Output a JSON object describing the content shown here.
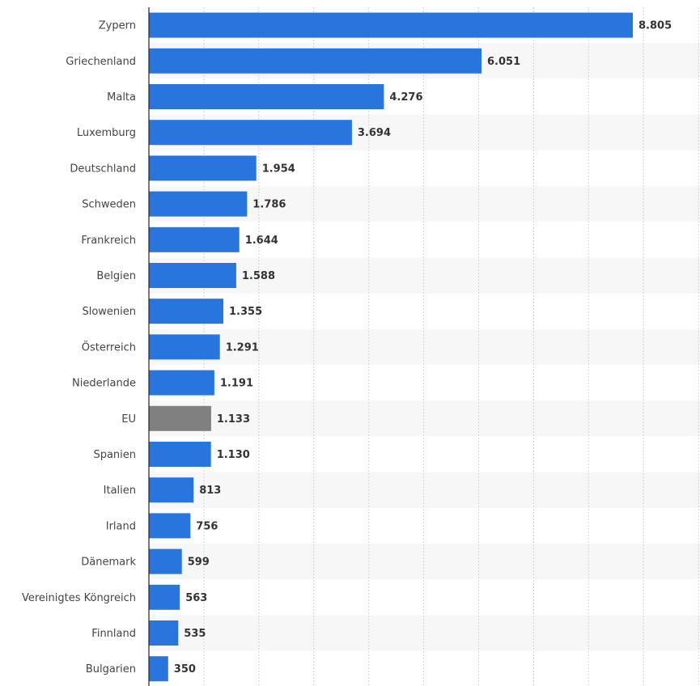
{
  "chart_data": {
    "type": "bar",
    "orientation": "horizontal",
    "title": "",
    "xlabel": "",
    "ylabel": "",
    "xlim": [
      0,
      10000
    ],
    "grid": true,
    "legend": "none",
    "categories": [
      "Zypern",
      "Griechenland",
      "Malta",
      "Luxemburg",
      "Deutschland",
      "Schweden",
      "Frankreich",
      "Belgien",
      "Slowenien",
      "Österreich",
      "Niederlande",
      "EU",
      "Spanien",
      "Italien",
      "Irland",
      "Dänemark",
      "Vereinigtes Köngreich",
      "Finnland",
      "Bulgarien"
    ],
    "values": [
      8805,
      6051,
      4276,
      3694,
      1954,
      1786,
      1644,
      1588,
      1355,
      1291,
      1191,
      1133,
      1130,
      813,
      756,
      599,
      563,
      535,
      350
    ],
    "value_labels": [
      "8.805",
      "6.051",
      "4.276",
      "3.694",
      "1.954",
      "1.786",
      "1.644",
      "1.588",
      "1.355",
      "1.291",
      "1.191",
      "1.133",
      "1.130",
      "813",
      "756",
      "599",
      "563",
      "535",
      "350"
    ],
    "highlight_category": "EU",
    "colors": {
      "bar": "#2876dd",
      "highlight": "#808080",
      "stripe": "#f7f7f7",
      "grid": "#d4d4d4",
      "axis": "#222222"
    }
  }
}
